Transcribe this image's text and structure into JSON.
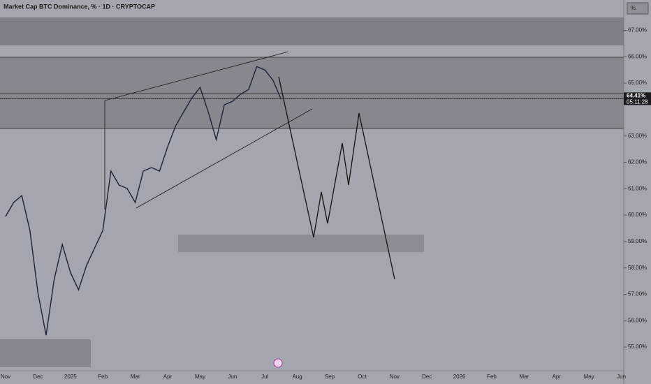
{
  "chart_data": {
    "type": "line",
    "title": "Market Cap BTC Dominance, % · 1D · CRYPTOCAP",
    "unit_box": "%",
    "last_price": {
      "value": 64.41,
      "label": "64.41%"
    },
    "countdown": "05:11:28",
    "color": "#1c2236",
    "categories": [
      "Nov",
      null,
      null,
      null,
      "Dec",
      null,
      null,
      null,
      "2025",
      null,
      null,
      null,
      "Feb",
      null,
      null,
      null,
      "Mar",
      null,
      null,
      null,
      "Apr",
      null,
      null,
      null,
      "May",
      null,
      null,
      null,
      "Jun",
      null,
      null,
      null,
      "Jul",
      null,
      null,
      null,
      "Aug",
      null,
      null,
      null,
      "Sep",
      null,
      null,
      null,
      "Oct",
      null,
      null,
      null,
      "Nov",
      null,
      null,
      null,
      "Dec",
      null,
      null,
      null,
      "2026",
      null,
      null,
      null,
      "Feb",
      null,
      null,
      null,
      "Mar",
      null,
      null,
      null,
      "Apr",
      null,
      null,
      null,
      "May",
      null,
      null,
      null,
      "Jun"
    ],
    "values": [
      59.95,
      60.48,
      60.74,
      59.42,
      57.04,
      55.45,
      57.57,
      58.89,
      57.83,
      57.17,
      58.1,
      58.76,
      59.42,
      61.67,
      61.14,
      61.01,
      60.48,
      61.67,
      61.8,
      61.67,
      62.59,
      63.39,
      63.92,
      64.44,
      64.84,
      63.92,
      62.86,
      64.18,
      64.31,
      64.58,
      64.76,
      65.63,
      65.5,
      65.11,
      64.39,
      null,
      null,
      null,
      null,
      null,
      null,
      null,
      null,
      null,
      null,
      null,
      null,
      null,
      null,
      null,
      null,
      null,
      null,
      null,
      null,
      null,
      null,
      null,
      null,
      null,
      null,
      null,
      null,
      null,
      null,
      null,
      null,
      null,
      null,
      null,
      null,
      null,
      null,
      null,
      null,
      null,
      null
    ],
    "ylim": [
      54.13,
      68.15
    ],
    "yticks": [
      {
        "value": 55,
        "label": "55.00%"
      },
      {
        "value": 56,
        "label": "56.00%"
      },
      {
        "value": 57,
        "label": "57.00%"
      },
      {
        "value": 58,
        "label": "58.00%"
      },
      {
        "value": 59,
        "label": "59.00%"
      },
      {
        "value": 60,
        "label": "60.00%"
      },
      {
        "value": 61,
        "label": "61.00%"
      },
      {
        "value": 62,
        "label": "62.00%"
      },
      {
        "value": 63,
        "label": "63.00%"
      },
      {
        "value": 65,
        "label": "65.00%"
      },
      {
        "value": 66,
        "label": "66.00%"
      },
      {
        "value": 67,
        "label": "67.00%"
      }
    ]
  }
}
